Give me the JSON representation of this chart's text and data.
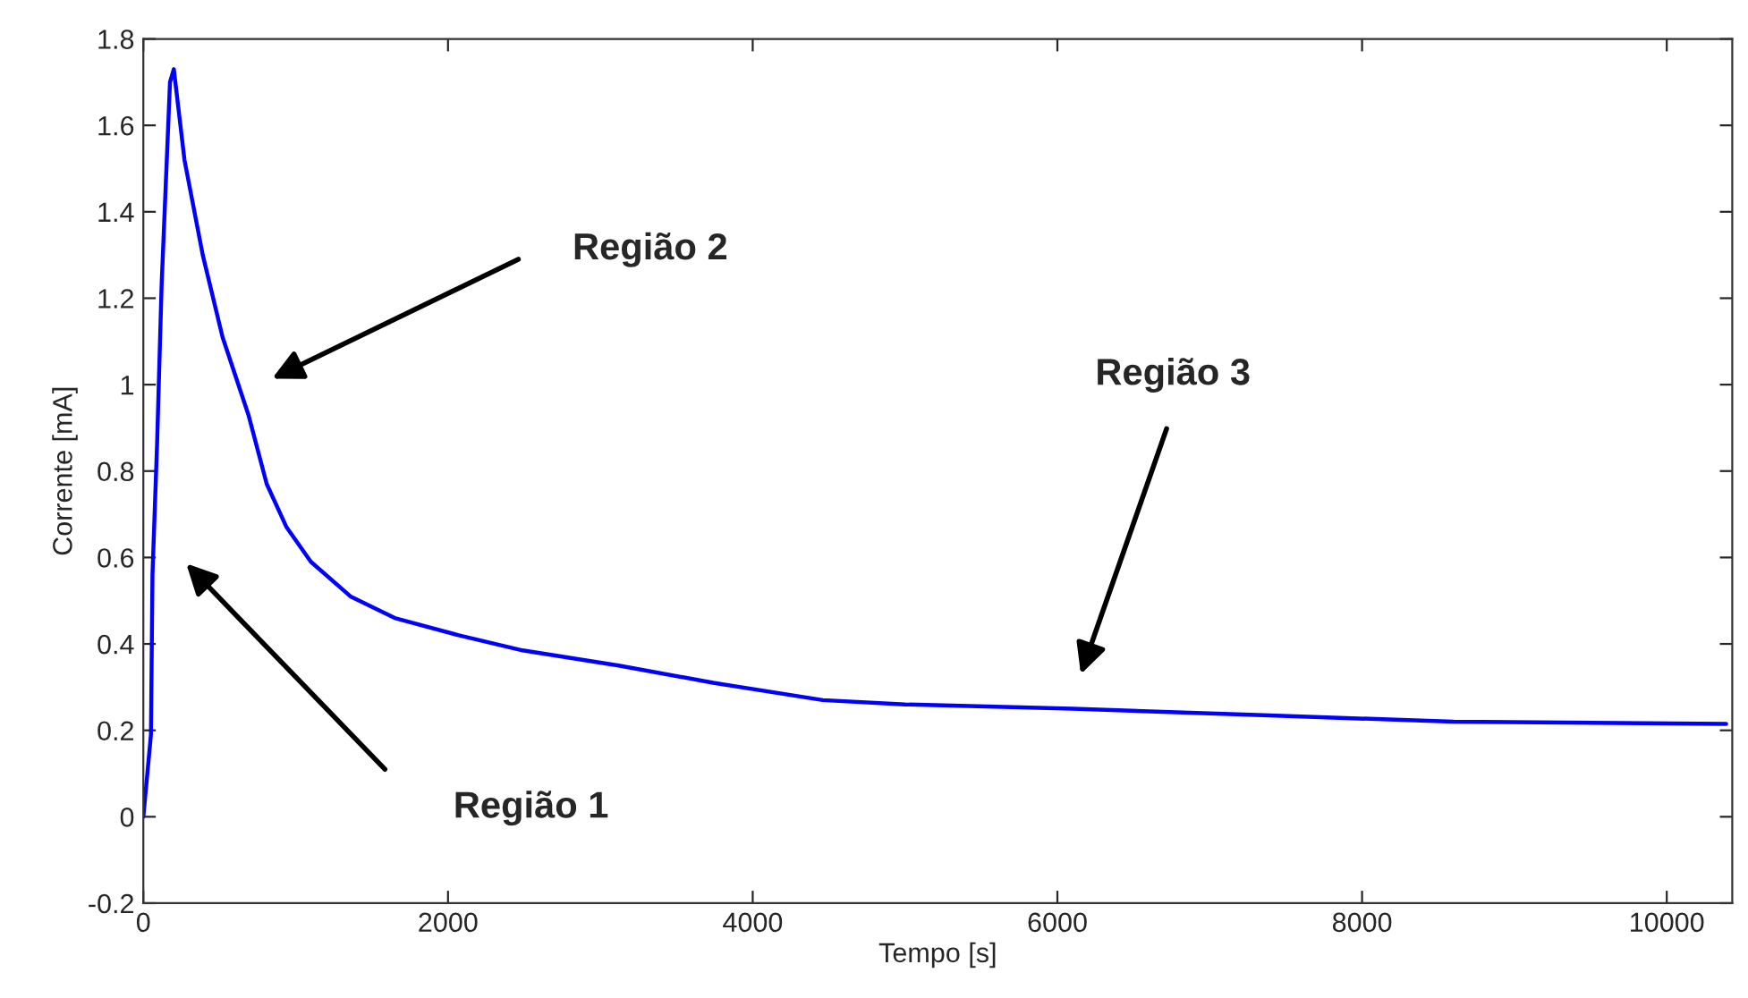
{
  "chart_data": {
    "type": "line",
    "xlabel": "Tempo [s]",
    "ylabel": "Corrente [mA]",
    "series": [
      {
        "color": "#0000ff",
        "x": [
          0,
          50,
          60,
          90,
          120,
          175,
          200,
          270,
          390,
          520,
          690,
          810,
          940,
          1100,
          1360,
          1650,
          2070,
          2490,
          3120,
          3740,
          4460,
          5000,
          6100,
          7350,
          8600,
          10390
        ],
        "values": [
          0,
          0.19,
          0.56,
          0.86,
          1.23,
          1.7,
          1.73,
          1.52,
          1.3,
          1.11,
          0.93,
          0.77,
          0.67,
          0.59,
          0.51,
          0.46,
          0.42,
          0.385,
          0.35,
          0.31,
          0.27,
          0.26,
          0.25,
          0.235,
          0.22,
          0.215
        ]
      }
    ],
    "xlim": [
      0,
      10430
    ],
    "ylim": [
      -0.2,
      1.8
    ],
    "xticks": [
      0,
      2000,
      4000,
      6000,
      8000,
      10000
    ],
    "yticks": [
      -0.2,
      0,
      0.2,
      0.4,
      0.6,
      0.8,
      1,
      1.2,
      1.4,
      1.6,
      1.8
    ],
    "grid": false,
    "legend": false,
    "marker": "none",
    "line_style": "solid",
    "annotations": [
      "Região 1",
      "Região 2",
      "Região 3"
    ]
  }
}
